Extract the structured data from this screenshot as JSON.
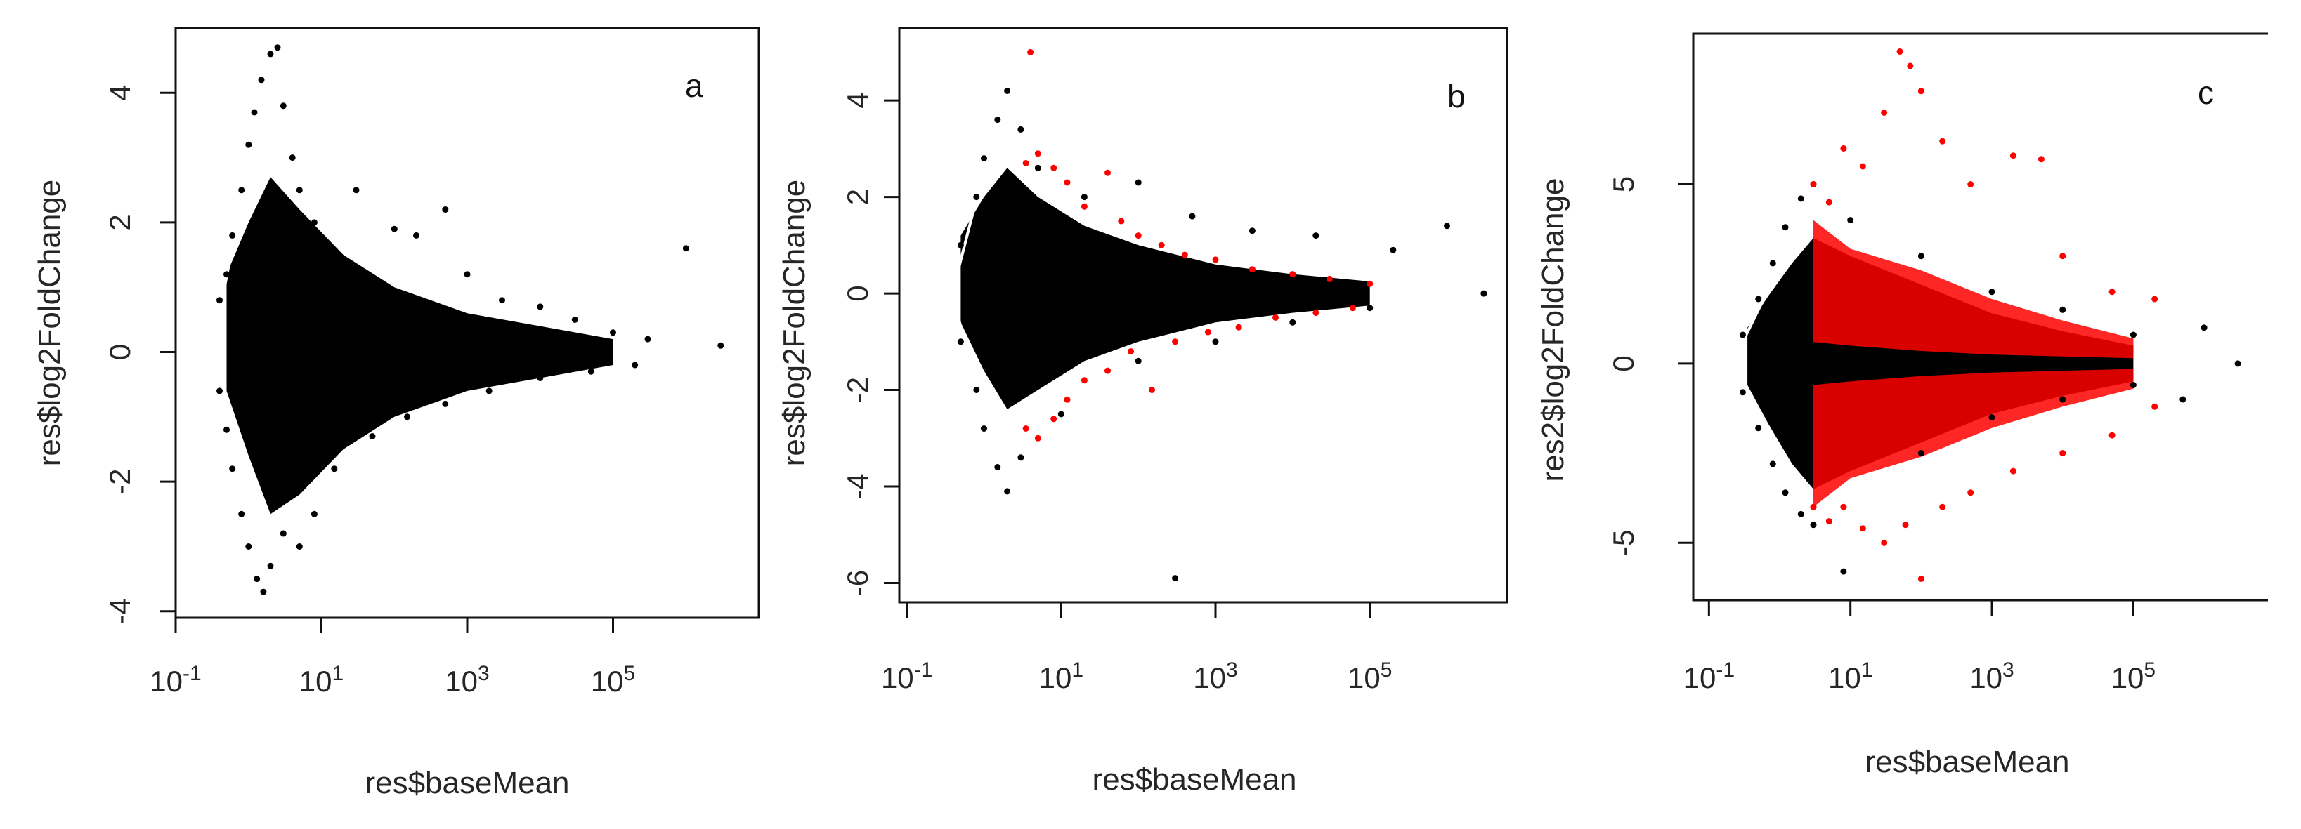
{
  "colors": {
    "background": "#ffffff",
    "points": "#000000",
    "significant": "#ff0000",
    "frame": "#111111"
  },
  "chart_data": [
    {
      "type": "scatter",
      "panel_label": "a",
      "xlabel": "res$baseMean",
      "ylabel": "res$log2FoldChange",
      "x_scale": "log10",
      "xlim": [
        0.1,
        10000000
      ],
      "ylim": [
        -4.1,
        5
      ],
      "x_ticks": [
        0.1,
        10,
        1000,
        100000
      ],
      "x_tick_labels": [
        {
          "base": "10",
          "exp": "-1"
        },
        {
          "base": "10",
          "exp": "1"
        },
        {
          "base": "10",
          "exp": "3"
        },
        {
          "base": "10",
          "exp": "5"
        }
      ],
      "y_ticks": [
        -4,
        -2,
        0,
        2,
        4
      ],
      "y_tick_labels": [
        "-4",
        "-2",
        "0",
        "2",
        "4"
      ],
      "grid": false,
      "legend": "none",
      "series": [
        {
          "color": "black",
          "points": [
            [
              0.4,
              0.8
            ],
            [
              0.5,
              1.2
            ],
            [
              0.6,
              1.8
            ],
            [
              0.8,
              2.5
            ],
            [
              1.0,
              3.2
            ],
            [
              1.2,
              3.7
            ],
            [
              1.5,
              4.2
            ],
            [
              2.0,
              4.6
            ],
            [
              2.5,
              4.7
            ],
            [
              3.0,
              3.8
            ],
            [
              4.0,
              3.0
            ],
            [
              5.0,
              2.5
            ],
            [
              8.0,
              2.0
            ],
            [
              15.0,
              1.5
            ],
            [
              30.0,
              2.5
            ],
            [
              50.0,
              1.0
            ],
            [
              100.0,
              1.9
            ],
            [
              200.0,
              1.8
            ],
            [
              500.0,
              2.2
            ],
            [
              1000.0,
              1.2
            ],
            [
              3000.0,
              0.8
            ],
            [
              10000.0,
              0.7
            ],
            [
              30000.0,
              0.5
            ],
            [
              100000.0,
              0.3
            ],
            [
              300000.0,
              0.2
            ],
            [
              1000000.0,
              1.6
            ],
            [
              3000000.0,
              0.1
            ],
            [
              0.4,
              -0.6
            ],
            [
              0.5,
              -1.2
            ],
            [
              0.6,
              -1.8
            ],
            [
              0.8,
              -2.5
            ],
            [
              1.0,
              -3.0
            ],
            [
              1.3,
              -3.5
            ],
            [
              1.6,
              -3.7
            ],
            [
              2.0,
              -3.3
            ],
            [
              3.0,
              -2.8
            ],
            [
              5.0,
              -3.0
            ],
            [
              8.0,
              -2.5
            ],
            [
              15.0,
              -1.8
            ],
            [
              50.0,
              -1.3
            ],
            [
              150.0,
              -1.0
            ],
            [
              500.0,
              -0.8
            ],
            [
              2000.0,
              -0.6
            ],
            [
              10000.0,
              -0.4
            ],
            [
              50000.0,
              -0.3
            ],
            [
              200000.0,
              -0.2
            ]
          ]
        }
      ],
      "density": [
        [
          0.5,
          0.3,
          0.9
        ],
        [
          1.0,
          0.2,
          1.8
        ],
        [
          2.0,
          0.1,
          2.6
        ],
        [
          5.0,
          0.0,
          2.2
        ],
        [
          20.0,
          0.0,
          1.5
        ],
        [
          100.0,
          0.0,
          1.0
        ],
        [
          1000.0,
          0.0,
          0.6
        ],
        [
          10000.0,
          0.0,
          0.4
        ],
        [
          100000.0,
          0.0,
          0.2
        ]
      ],
      "edge_line": [
        [
          0.45,
          0.9
        ],
        [
          0.7,
          2.0
        ],
        [
          1.0,
          3.0
        ],
        [
          1.3,
          3.8
        ],
        [
          1.6,
          4.3
        ]
      ]
    },
    {
      "type": "scatter",
      "panel_label": "b",
      "xlabel": "res$baseMean",
      "ylabel": "res$log2FoldChange",
      "x_scale": "log10",
      "xlim": [
        0.08,
        6000000
      ],
      "ylim": [
        -6.4,
        5.5
      ],
      "x_ticks": [
        0.1,
        10,
        1000,
        100000
      ],
      "x_tick_labels": [
        {
          "base": "10",
          "exp": "-1"
        },
        {
          "base": "10",
          "exp": "1"
        },
        {
          "base": "10",
          "exp": "3"
        },
        {
          "base": "10",
          "exp": "5"
        }
      ],
      "y_ticks": [
        -6,
        -4,
        -2,
        0,
        2,
        4
      ],
      "y_tick_labels": [
        "-6",
        "-4",
        "-2",
        "0",
        "2",
        "4"
      ],
      "grid": false,
      "legend": "none",
      "series": [
        {
          "color": "black",
          "points": [
            [
              0.5,
              1.0
            ],
            [
              0.8,
              2.0
            ],
            [
              1.0,
              2.8
            ],
            [
              1.5,
              3.6
            ],
            [
              2.0,
              4.2
            ],
            [
              3.0,
              3.4
            ],
            [
              5.0,
              2.6
            ],
            [
              20.0,
              2.0
            ],
            [
              100.0,
              2.3
            ],
            [
              500.0,
              1.6
            ],
            [
              3000.0,
              1.3
            ],
            [
              20000.0,
              1.2
            ],
            [
              200000.0,
              0.9
            ],
            [
              1000000.0,
              1.4
            ],
            [
              3000000.0,
              0.0
            ],
            [
              0.5,
              -1.0
            ],
            [
              0.8,
              -2.0
            ],
            [
              1.0,
              -2.8
            ],
            [
              1.5,
              -3.6
            ],
            [
              2.0,
              -4.1
            ],
            [
              3.0,
              -3.4
            ],
            [
              10.0,
              -2.5
            ],
            [
              100.0,
              -1.4
            ],
            [
              300.0,
              -5.9
            ],
            [
              1000.0,
              -1.0
            ],
            [
              10000.0,
              -0.6
            ],
            [
              100000.0,
              -0.3
            ]
          ]
        },
        {
          "color": "red",
          "points": [
            [
              4.0,
              5.0
            ],
            [
              3.5,
              2.7
            ],
            [
              5.0,
              2.9
            ],
            [
              8.0,
              2.6
            ],
            [
              12.0,
              2.3
            ],
            [
              20.0,
              1.8
            ],
            [
              40.0,
              2.5
            ],
            [
              60.0,
              1.5
            ],
            [
              100.0,
              1.2
            ],
            [
              200.0,
              1.0
            ],
            [
              400.0,
              0.8
            ],
            [
              1000.0,
              0.7
            ],
            [
              3000.0,
              0.5
            ],
            [
              10000.0,
              0.4
            ],
            [
              30000.0,
              0.3
            ],
            [
              100000.0,
              0.2
            ],
            [
              3.5,
              -2.8
            ],
            [
              5.0,
              -3.0
            ],
            [
              8.0,
              -2.6
            ],
            [
              12.0,
              -2.2
            ],
            [
              20.0,
              -1.8
            ],
            [
              40.0,
              -1.6
            ],
            [
              80.0,
              -1.2
            ],
            [
              150.0,
              -2.0
            ],
            [
              300.0,
              -1.0
            ],
            [
              800.0,
              -0.8
            ],
            [
              2000.0,
              -0.7
            ],
            [
              6000.0,
              -0.5
            ],
            [
              20000.0,
              -0.4
            ],
            [
              60000.0,
              -0.3
            ]
          ]
        }
      ],
      "density": [
        [
          0.5,
          0.3,
          0.9
        ],
        [
          1.0,
          0.2,
          1.8
        ],
        [
          2.0,
          0.1,
          2.5
        ],
        [
          5.0,
          0.0,
          2.0
        ],
        [
          20.0,
          0.0,
          1.4
        ],
        [
          100.0,
          0.0,
          1.0
        ],
        [
          1000.0,
          0.0,
          0.6
        ],
        [
          10000.0,
          0.0,
          0.4
        ],
        [
          100000.0,
          0.0,
          0.25
        ]
      ],
      "edge_line": [
        [
          0.45,
          0.4
        ],
        [
          0.7,
          1.6
        ],
        [
          1.0,
          2.5
        ],
        [
          1.5,
          3.3
        ],
        [
          2.0,
          3.8
        ]
      ]
    },
    {
      "type": "scatter",
      "panel_label": "c",
      "xlabel": "res$baseMean",
      "ylabel": "res2$log2FoldChange",
      "x_scale": "log10",
      "xlim": [
        0.06,
        8000000
      ],
      "ylim": [
        -6.6,
        9.2
      ],
      "x_ticks": [
        0.1,
        10,
        1000,
        100000
      ],
      "x_tick_labels": [
        {
          "base": "10",
          "exp": "-1"
        },
        {
          "base": "10",
          "exp": "1"
        },
        {
          "base": "10",
          "exp": "3"
        },
        {
          "base": "10",
          "exp": "5"
        }
      ],
      "y_ticks": [
        -5,
        0,
        5
      ],
      "y_tick_labels": [
        "-5",
        "0",
        "5"
      ],
      "grid": false,
      "legend": "none",
      "series": [
        {
          "color": "black",
          "points": [
            [
              0.3,
              0.8
            ],
            [
              0.5,
              1.8
            ],
            [
              0.8,
              2.8
            ],
            [
              1.2,
              3.8
            ],
            [
              2.0,
              4.6
            ],
            [
              3.0,
              5.0
            ],
            [
              10.0,
              4.0
            ],
            [
              100.0,
              3.0
            ],
            [
              1000.0,
              2.0
            ],
            [
              10000.0,
              1.5
            ],
            [
              100000.0,
              0.8
            ],
            [
              1000000.0,
              1.0
            ],
            [
              3000000.0,
              0.0
            ],
            [
              0.3,
              -0.8
            ],
            [
              0.5,
              -1.8
            ],
            [
              0.8,
              -2.8
            ],
            [
              1.2,
              -3.6
            ],
            [
              2.0,
              -4.2
            ],
            [
              3.0,
              -4.5
            ],
            [
              8.0,
              -5.8
            ],
            [
              100.0,
              -2.5
            ],
            [
              1000.0,
              -1.5
            ],
            [
              10000.0,
              -1.0
            ],
            [
              100000.0,
              -0.6
            ],
            [
              500000.0,
              -1.0
            ]
          ]
        },
        {
          "color": "red",
          "points": [
            [
              3.0,
              5.0
            ],
            [
              5.0,
              4.5
            ],
            [
              8.0,
              6.0
            ],
            [
              15.0,
              5.5
            ],
            [
              30.0,
              7.0
            ],
            [
              50.0,
              8.7
            ],
            [
              100.0,
              7.6
            ],
            [
              70.0,
              8.3
            ],
            [
              200.0,
              6.2
            ],
            [
              500.0,
              5.0
            ],
            [
              2000.0,
              5.8
            ],
            [
              5000.0,
              5.7
            ],
            [
              10000.0,
              3.0
            ],
            [
              50000.0,
              2.0
            ],
            [
              200000.0,
              1.8
            ],
            [
              3.0,
              -4.0
            ],
            [
              5.0,
              -4.4
            ],
            [
              8.0,
              -4.0
            ],
            [
              15.0,
              -4.6
            ],
            [
              30.0,
              -5.0
            ],
            [
              60.0,
              -4.5
            ],
            [
              100.0,
              -6.0
            ],
            [
              200.0,
              -4.0
            ],
            [
              500.0,
              -3.6
            ],
            [
              2000.0,
              -3.0
            ],
            [
              10000.0,
              -2.5
            ],
            [
              50000.0,
              -2.0
            ],
            [
              200000.0,
              -1.2
            ]
          ]
        }
      ],
      "density": [
        [
          0.35,
          0.2,
          0.8
        ],
        [
          0.7,
          0.1,
          1.8
        ],
        [
          1.5,
          0.0,
          2.8
        ],
        [
          3.0,
          0.0,
          3.5
        ],
        [
          10.0,
          0.0,
          3.0
        ],
        [
          100.0,
          0.0,
          2.2
        ],
        [
          1000.0,
          0.0,
          1.4
        ],
        [
          10000.0,
          0.0,
          0.9
        ],
        [
          100000.0,
          0.0,
          0.5
        ]
      ],
      "red_band": [
        [
          3.0,
          0.6,
          4.0
        ],
        [
          10.0,
          0.5,
          3.2
        ],
        [
          100.0,
          0.35,
          2.6
        ],
        [
          1000.0,
          0.25,
          1.8
        ],
        [
          10000.0,
          0.2,
          1.2
        ],
        [
          100000.0,
          0.15,
          0.7
        ]
      ],
      "edge_line": [
        [
          0.3,
          0.6
        ],
        [
          0.5,
          1.5
        ],
        [
          0.8,
          2.3
        ],
        [
          1.3,
          3.2
        ],
        [
          2.0,
          3.8
        ]
      ]
    }
  ]
}
